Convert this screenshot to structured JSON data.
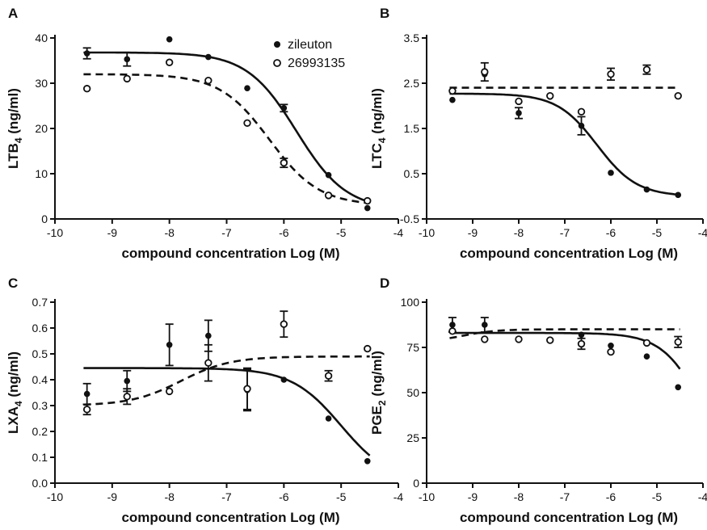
{
  "chart_data": [
    {
      "type": "scatter",
      "panel_label": "A",
      "xlabel": "compound concentration Log (M)",
      "ylabel": "LTB4 (ng/ml)",
      "ylabel_main": "LTB",
      "ylabel_sub": "4",
      "ylabel_unit": " (ng/ml)",
      "xlim": [
        -10,
        -4
      ],
      "ylim": [
        0,
        40
      ],
      "xticks": [
        -10,
        -9,
        -8,
        -7,
        -6,
        -5,
        -4
      ],
      "xtick_labels": [
        "-10",
        "-9",
        "-8",
        "-7",
        "-6",
        "-5",
        "-4"
      ],
      "yticks": [
        0,
        10,
        20,
        30,
        40
      ],
      "ytick_labels": [
        "0",
        "10",
        "20",
        "30",
        "40"
      ],
      "legend": {
        "position": "top-right",
        "entries": [
          {
            "label": "zileuton",
            "marker": "filled-circle"
          },
          {
            "label": "26993135",
            "marker": "open-circle"
          }
        ]
      },
      "series": [
        {
          "name": "zileuton",
          "marker": "filled",
          "line": "solid",
          "x": [
            -9.44,
            -8.74,
            -8.0,
            -7.32,
            -6.64,
            -6.0,
            -5.22,
            -4.54
          ],
          "y": [
            36.6,
            35.3,
            39.7,
            35.8,
            28.9,
            24.5,
            9.7,
            2.4
          ],
          "err": [
            1.2,
            1.5,
            0,
            0,
            0,
            0.8,
            0,
            0
          ],
          "fit": {
            "top": 36.8,
            "bottom": 2.0,
            "logIC50": -5.78,
            "hill": -1.0
          }
        },
        {
          "name": "26993135",
          "marker": "open",
          "line": "dashed",
          "x": [
            -9.44,
            -8.74,
            -8.0,
            -7.32,
            -6.64,
            -6.0,
            -5.22,
            -4.54
          ],
          "y": [
            28.8,
            31.0,
            34.6,
            30.6,
            21.2,
            12.4,
            5.2,
            4.0
          ],
          "err": [
            0,
            0,
            0,
            0,
            0,
            1.0,
            0,
            0
          ],
          "fit": {
            "top": 32.0,
            "bottom": 3.0,
            "logIC50": -6.25,
            "hill": -1.0
          }
        }
      ]
    },
    {
      "type": "scatter",
      "panel_label": "B",
      "xlabel": "compound concentration Log (M)",
      "ylabel": "LTC4 (ng/ml)",
      "ylabel_main": "LTC",
      "ylabel_sub": "4",
      "ylabel_unit": " (ng/ml)",
      "xlim": [
        -10,
        -4
      ],
      "ylim": [
        -0.5,
        3.5
      ],
      "xticks": [
        -10,
        -9,
        -8,
        -7,
        -6,
        -5,
        -4
      ],
      "xtick_labels": [
        "-10",
        "-9",
        "-8",
        "-7",
        "-6",
        "-5",
        "-4"
      ],
      "yticks": [
        -0.5,
        0.5,
        1.5,
        2.5,
        3.5
      ],
      "ytick_labels": [
        "-0.5",
        "0.5",
        "1.5",
        "2.5",
        "3.5"
      ],
      "series": [
        {
          "name": "zileuton",
          "marker": "filled",
          "line": "solid",
          "x": [
            -9.44,
            -8.74,
            -8.0,
            -7.32,
            -6.64,
            -6.0,
            -5.22,
            -4.54
          ],
          "y": [
            2.13,
            2.7,
            1.84,
            2.2,
            1.56,
            0.52,
            0.15,
            0.03
          ],
          "err": [
            0,
            0,
            0.12,
            0,
            0.2,
            0,
            0,
            0
          ],
          "fit": {
            "top": 2.27,
            "bottom": 0.0,
            "logIC50": -6.3,
            "hill": -1.0
          }
        },
        {
          "name": "26993135",
          "marker": "open",
          "line": "dashed",
          "x": [
            -9.44,
            -8.74,
            -8.0,
            -7.32,
            -6.64,
            -6.0,
            -5.22,
            -4.54
          ],
          "y": [
            2.33,
            2.75,
            2.1,
            2.22,
            1.87,
            2.7,
            2.8,
            2.22
          ],
          "err": [
            0,
            0.2,
            0,
            0,
            0,
            0.13,
            0.1,
            0
          ],
          "fit": {
            "flat": 2.4
          }
        }
      ]
    },
    {
      "type": "scatter",
      "panel_label": "C",
      "xlabel": "compound concentration Log (M)",
      "ylabel": "LXA4 (ng/ml)",
      "ylabel_main": "LXA",
      "ylabel_sub": "4",
      "ylabel_unit": " (ng/ml)",
      "xlim": [
        -10,
        -4
      ],
      "ylim": [
        0.0,
        0.7
      ],
      "xticks": [
        -10,
        -9,
        -8,
        -7,
        -6,
        -5,
        -4
      ],
      "xtick_labels": [
        "-10",
        "-9",
        "-8",
        "-7",
        "-6",
        "-5",
        "-4"
      ],
      "yticks": [
        0.0,
        0.1,
        0.2,
        0.3,
        0.4,
        0.5,
        0.6,
        0.7
      ],
      "ytick_labels": [
        "0.0",
        "0.1",
        "0.2",
        "0.3",
        "0.4",
        "0.5",
        "0.6",
        "0.7"
      ],
      "series": [
        {
          "name": "zileuton",
          "marker": "filled",
          "line": "solid",
          "x": [
            -9.44,
            -8.74,
            -8.0,
            -7.32,
            -6.64,
            -6.0,
            -5.22,
            -4.54
          ],
          "y": [
            0.345,
            0.395,
            0.535,
            0.57,
            0.36,
            0.4,
            0.25,
            0.085
          ],
          "err": [
            0.04,
            0.04,
            0.08,
            0.06,
            0.08,
            0,
            0,
            0
          ],
          "fit": {
            "top": 0.445,
            "bottom": 0.0,
            "logIC50": -5.0,
            "hill": -1.0
          }
        },
        {
          "name": "26993135",
          "marker": "open",
          "line": "dashed",
          "x": [
            -9.44,
            -8.74,
            -8.0,
            -7.32,
            -6.64,
            -6.0,
            -5.22,
            -4.54
          ],
          "y": [
            0.285,
            0.335,
            0.355,
            0.465,
            0.365,
            0.615,
            0.415,
            0.52
          ],
          "err": [
            0.02,
            0.03,
            0,
            0.07,
            0.08,
            0.05,
            0.02,
            0
          ],
          "fit": {
            "top": 0.49,
            "bottom": 0.3,
            "logIC50": -7.8,
            "hill": 1.0
          }
        }
      ]
    },
    {
      "type": "scatter",
      "panel_label": "D",
      "xlabel": "compound concentration Log (M)",
      "ylabel": "PGE2 (ng/ml)",
      "ylabel_main": "PGE",
      "ylabel_sub": "2",
      "ylabel_unit": " (ng/ml)",
      "xlim": [
        -10,
        -4
      ],
      "ylim": [
        0,
        100
      ],
      "xticks": [
        -10,
        -9,
        -8,
        -7,
        -6,
        -5,
        -4
      ],
      "xtick_labels": [
        "-10",
        "-9",
        "-8",
        "-7",
        "-6",
        "-5",
        "-4"
      ],
      "yticks": [
        0,
        25,
        50,
        75,
        100
      ],
      "ytick_labels": [
        "0",
        "25",
        "50",
        "75",
        "100"
      ],
      "series": [
        {
          "name": "zileuton",
          "marker": "filled",
          "line": "solid",
          "x": [
            -9.44,
            -8.74,
            -8.0,
            -7.32,
            -6.64,
            -6.0,
            -5.22,
            -4.54
          ],
          "y": [
            87.5,
            87.5,
            79.5,
            79.0,
            82.0,
            76.0,
            70.0,
            53.0
          ],
          "err": [
            4,
            4,
            0,
            0,
            0,
            0,
            0,
            0
          ],
          "fit": {
            "top": 83.0,
            "bottom": 0.0,
            "logIC50": -4.0,
            "hill": -1.0
          }
        },
        {
          "name": "26993135",
          "marker": "open",
          "line": "dashed",
          "x": [
            -9.44,
            -8.74,
            -8.0,
            -7.32,
            -6.64,
            -6.0,
            -5.22,
            -4.54
          ],
          "y": [
            84.0,
            79.5,
            79.5,
            79.0,
            77.0,
            72.5,
            77.5,
            78.0
          ],
          "err": [
            0,
            0,
            0,
            0,
            3,
            0,
            0,
            3
          ],
          "fit": {
            "top": 85.0,
            "bottom": 78.0,
            "logIC50": -9.2,
            "hill": 1.2
          }
        }
      ]
    }
  ]
}
